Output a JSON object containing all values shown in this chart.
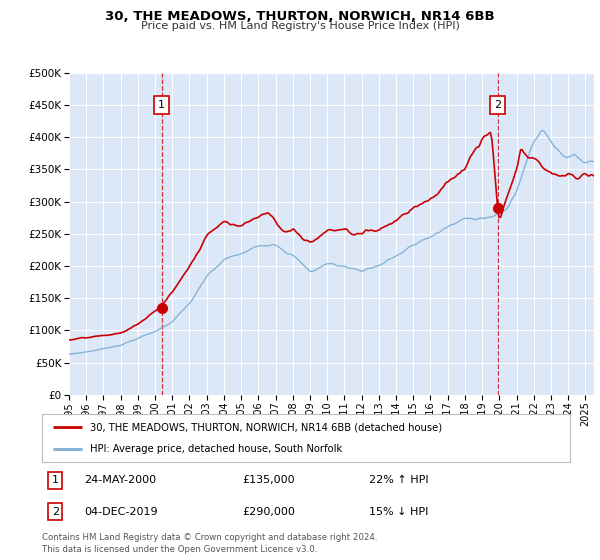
{
  "title": "30, THE MEADOWS, THURTON, NORWICH, NR14 6BB",
  "subtitle": "Price paid vs. HM Land Registry's House Price Index (HPI)",
  "ylim": [
    0,
    500000
  ],
  "yticks": [
    0,
    50000,
    100000,
    150000,
    200000,
    250000,
    300000,
    350000,
    400000,
    450000,
    500000
  ],
  "background_color": "#dce8f8",
  "sale1_x": 2000.38,
  "sale1_y": 135000,
  "sale1_label": "1",
  "sale1_date": "24-MAY-2000",
  "sale1_price": "£135,000",
  "sale1_hpi": "22% ↑ HPI",
  "sale2_x": 2019.92,
  "sale2_y": 290000,
  "sale2_label": "2",
  "sale2_date": "04-DEC-2019",
  "sale2_price": "£290,000",
  "sale2_hpi": "15% ↓ HPI",
  "legend_line1": "30, THE MEADOWS, THURTON, NORWICH, NR14 6BB (detached house)",
  "legend_line2": "HPI: Average price, detached house, South Norfolk",
  "footer": "Contains HM Land Registry data © Crown copyright and database right 2024.\nThis data is licensed under the Open Government Licence v3.0.",
  "sale_color": "#cc0000",
  "hpi_color": "#7dadd4",
  "xmin": 1995,
  "xmax": 2025.5
}
